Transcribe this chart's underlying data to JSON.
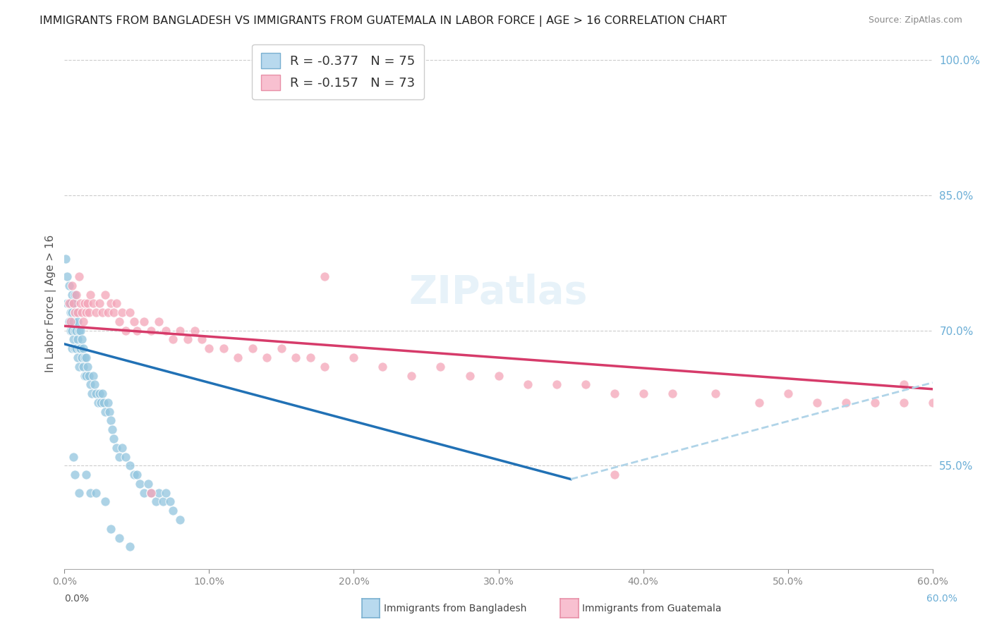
{
  "title": "IMMIGRANTS FROM BANGLADESH VS IMMIGRANTS FROM GUATEMALA IN LABOR FORCE | AGE > 16 CORRELATION CHART",
  "source": "Source: ZipAtlas.com",
  "ylabel": "In Labor Force | Age > 16",
  "legend_label1": "Immigrants from Bangladesh",
  "legend_label2": "Immigrants from Guatemala",
  "R1": "-0.377",
  "N1": "75",
  "R2": "-0.157",
  "N2": "73",
  "color_blue": "#92c5de",
  "color_pink": "#f4a4b8",
  "color_blue_line": "#2171b5",
  "color_pink_line": "#d63b6a",
  "color_dashed": "#b0d4e8",
  "x_min": 0.0,
  "x_max": 0.6,
  "y_min": 0.435,
  "y_max": 1.025,
  "bangladesh_x": [
    0.001,
    0.002,
    0.002,
    0.003,
    0.003,
    0.003,
    0.004,
    0.004,
    0.004,
    0.005,
    0.005,
    0.005,
    0.005,
    0.006,
    0.006,
    0.006,
    0.007,
    0.007,
    0.007,
    0.007,
    0.008,
    0.008,
    0.008,
    0.009,
    0.009,
    0.009,
    0.01,
    0.01,
    0.01,
    0.011,
    0.011,
    0.012,
    0.012,
    0.013,
    0.013,
    0.014,
    0.014,
    0.015,
    0.015,
    0.016,
    0.017,
    0.018,
    0.019,
    0.02,
    0.021,
    0.022,
    0.023,
    0.024,
    0.025,
    0.026,
    0.027,
    0.028,
    0.03,
    0.031,
    0.032,
    0.033,
    0.034,
    0.036,
    0.038,
    0.04,
    0.042,
    0.045,
    0.048,
    0.05,
    0.052,
    0.055,
    0.058,
    0.06,
    0.063,
    0.065,
    0.068,
    0.07,
    0.073,
    0.075,
    0.08
  ],
  "bangladesh_y": [
    0.78,
    0.76,
    0.73,
    0.75,
    0.73,
    0.71,
    0.73,
    0.72,
    0.7,
    0.74,
    0.72,
    0.7,
    0.68,
    0.73,
    0.71,
    0.69,
    0.74,
    0.72,
    0.7,
    0.68,
    0.72,
    0.7,
    0.68,
    0.71,
    0.69,
    0.67,
    0.7,
    0.68,
    0.66,
    0.7,
    0.68,
    0.69,
    0.67,
    0.68,
    0.66,
    0.67,
    0.65,
    0.67,
    0.65,
    0.66,
    0.65,
    0.64,
    0.63,
    0.65,
    0.64,
    0.63,
    0.62,
    0.63,
    0.62,
    0.63,
    0.62,
    0.61,
    0.62,
    0.61,
    0.6,
    0.59,
    0.58,
    0.57,
    0.56,
    0.57,
    0.56,
    0.55,
    0.54,
    0.54,
    0.53,
    0.52,
    0.53,
    0.52,
    0.51,
    0.52,
    0.51,
    0.52,
    0.51,
    0.5,
    0.49
  ],
  "bangladesh_low_x": [
    0.006,
    0.007,
    0.01,
    0.015,
    0.018,
    0.022,
    0.028,
    0.032,
    0.038,
    0.045
  ],
  "bangladesh_low_y": [
    0.56,
    0.54,
    0.52,
    0.54,
    0.52,
    0.52,
    0.51,
    0.48,
    0.47,
    0.46
  ],
  "guatemala_x": [
    0.003,
    0.004,
    0.005,
    0.006,
    0.007,
    0.008,
    0.009,
    0.01,
    0.011,
    0.012,
    0.013,
    0.014,
    0.015,
    0.016,
    0.017,
    0.018,
    0.02,
    0.022,
    0.024,
    0.026,
    0.028,
    0.03,
    0.032,
    0.034,
    0.036,
    0.038,
    0.04,
    0.042,
    0.045,
    0.048,
    0.05,
    0.055,
    0.06,
    0.065,
    0.07,
    0.075,
    0.08,
    0.085,
    0.09,
    0.095,
    0.1,
    0.11,
    0.12,
    0.13,
    0.14,
    0.15,
    0.16,
    0.17,
    0.18,
    0.2,
    0.22,
    0.24,
    0.26,
    0.28,
    0.3,
    0.32,
    0.34,
    0.36,
    0.38,
    0.4,
    0.42,
    0.45,
    0.48,
    0.5,
    0.52,
    0.54,
    0.56,
    0.58,
    0.6,
    0.18,
    0.06,
    0.38,
    0.58
  ],
  "guatemala_y": [
    0.73,
    0.71,
    0.75,
    0.73,
    0.72,
    0.74,
    0.72,
    0.76,
    0.73,
    0.72,
    0.71,
    0.73,
    0.72,
    0.73,
    0.72,
    0.74,
    0.73,
    0.72,
    0.73,
    0.72,
    0.74,
    0.72,
    0.73,
    0.72,
    0.73,
    0.71,
    0.72,
    0.7,
    0.72,
    0.71,
    0.7,
    0.71,
    0.7,
    0.71,
    0.7,
    0.69,
    0.7,
    0.69,
    0.7,
    0.69,
    0.68,
    0.68,
    0.67,
    0.68,
    0.67,
    0.68,
    0.67,
    0.67,
    0.66,
    0.67,
    0.66,
    0.65,
    0.66,
    0.65,
    0.65,
    0.64,
    0.64,
    0.64,
    0.63,
    0.63,
    0.63,
    0.63,
    0.62,
    0.63,
    0.62,
    0.62,
    0.62,
    0.62,
    0.62,
    0.76,
    0.52,
    0.54,
    0.64
  ]
}
